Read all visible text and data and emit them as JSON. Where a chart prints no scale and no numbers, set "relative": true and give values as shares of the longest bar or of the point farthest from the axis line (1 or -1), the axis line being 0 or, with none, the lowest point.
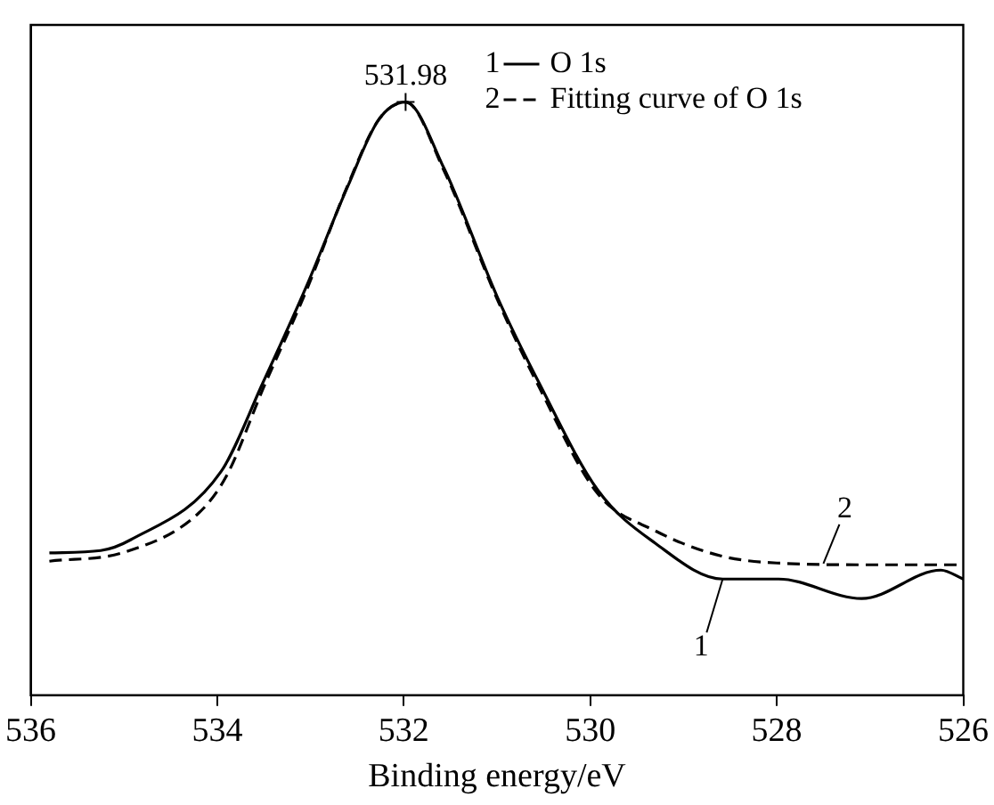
{
  "chart_data": {
    "type": "line",
    "xlabel": "Binding energy/eV",
    "relative": true,
    "xlim": [
      536,
      526
    ],
    "xticks": [
      536,
      534,
      532,
      530,
      528,
      526
    ],
    "legend": "top right",
    "grid": false,
    "marker": "none",
    "series": [
      {
        "name": "O 1s",
        "color": "#000000",
        "line_style": "solid",
        "x": [
          535.8,
          535.25,
          534.93,
          533.96,
          533.51,
          533.05,
          532.6,
          532.27,
          531.98,
          531.57,
          530.99,
          530.55,
          529.92,
          529.3,
          528.58,
          527.98,
          527.09,
          526.24,
          526.0
        ],
        "values": [
          0.24,
          0.244,
          0.262,
          0.377,
          0.527,
          0.687,
          0.858,
          0.97,
          1.0,
          0.889,
          0.669,
          0.527,
          0.346,
          0.256,
          0.196,
          0.196,
          0.163,
          0.211,
          0.196
        ]
      },
      {
        "name": "Fitting curve of O 1s",
        "color": "#000000",
        "line_style": "dashed",
        "x": [
          535.8,
          535.0,
          534.2,
          533.9,
          533.5,
          533.05,
          532.6,
          532.27,
          531.98,
          531.57,
          530.99,
          530.55,
          529.92,
          529.3,
          528.6,
          528.0,
          527.0,
          526.0
        ],
        "values": [
          0.226,
          0.241,
          0.307,
          0.37,
          0.52,
          0.68,
          0.86,
          0.97,
          1.0,
          0.885,
          0.665,
          0.52,
          0.34,
          0.277,
          0.235,
          0.223,
          0.22,
          0.22
        ]
      }
    ],
    "annotations": [
      {
        "text": "531.98",
        "x": 531.98,
        "y": 1.0
      },
      {
        "text": "1",
        "x": 528.58,
        "y": 0.196
      },
      {
        "text": "2",
        "x": 527.5,
        "y": 0.222
      }
    ]
  }
}
